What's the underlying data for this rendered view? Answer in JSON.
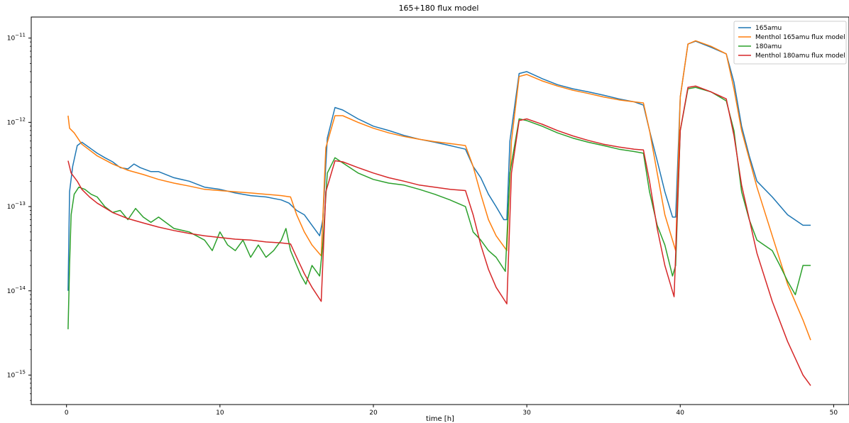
{
  "chart_data": {
    "type": "line",
    "title": "165+180 flux model",
    "xlabel": "time [h]",
    "ylabel": "",
    "xlim": [
      -2.3,
      51
    ],
    "ylim_log10": [
      -15.35,
      -10.75
    ],
    "yscale": "log",
    "grid": false,
    "legend_position": "top-right",
    "x_ticks": [
      0,
      10,
      20,
      30,
      40,
      50
    ],
    "y_ticks": [
      {
        "exp": -11,
        "label": "10−11"
      },
      {
        "exp": -12,
        "label": "10−12"
      },
      {
        "exp": -13,
        "label": "10−13"
      },
      {
        "exp": -14,
        "label": "10−14"
      },
      {
        "exp": -15,
        "label": "10−15"
      }
    ],
    "series": [
      {
        "name": "165amu",
        "color": "#1f77b4",
        "points": [
          [
            0.1,
            1e-14
          ],
          [
            0.2,
            1.5e-13
          ],
          [
            0.4,
            3e-13
          ],
          [
            0.7,
            5.3e-13
          ],
          [
            1.0,
            5.8e-13
          ],
          [
            1.5,
            5e-13
          ],
          [
            2.0,
            4.3e-13
          ],
          [
            2.5,
            3.8e-13
          ],
          [
            3.0,
            3.4e-13
          ],
          [
            3.5,
            2.9e-13
          ],
          [
            4.0,
            2.8e-13
          ],
          [
            4.4,
            3.2e-13
          ],
          [
            4.8,
            2.9e-13
          ],
          [
            5.5,
            2.6e-13
          ],
          [
            6.0,
            2.6e-13
          ],
          [
            7.0,
            2.2e-13
          ],
          [
            8.0,
            2e-13
          ],
          [
            9.0,
            1.7e-13
          ],
          [
            10.0,
            1.6e-13
          ],
          [
            11.0,
            1.45e-13
          ],
          [
            12.0,
            1.35e-13
          ],
          [
            13.0,
            1.3e-13
          ],
          [
            14.0,
            1.2e-13
          ],
          [
            14.5,
            1.1e-13
          ],
          [
            15.0,
            9e-14
          ],
          [
            15.5,
            8e-14
          ],
          [
            16.0,
            6e-14
          ],
          [
            16.5,
            4.5e-14
          ],
          [
            16.7,
            7e-14
          ],
          [
            17.0,
            6.5e-13
          ],
          [
            17.5,
            1.5e-12
          ],
          [
            18.0,
            1.4e-12
          ],
          [
            19.0,
            1.1e-12
          ],
          [
            20.0,
            9e-13
          ],
          [
            21.0,
            8e-13
          ],
          [
            22.0,
            7e-13
          ],
          [
            23.0,
            6.3e-13
          ],
          [
            24.0,
            5.8e-13
          ],
          [
            25.0,
            5.3e-13
          ],
          [
            26.0,
            4.8e-13
          ],
          [
            26.5,
            3e-13
          ],
          [
            27.0,
            2.2e-13
          ],
          [
            27.5,
            1.4e-13
          ],
          [
            28.0,
            1e-13
          ],
          [
            28.5,
            7e-14
          ],
          [
            28.7,
            7e-14
          ],
          [
            28.9,
            6e-13
          ],
          [
            29.5,
            3.8e-12
          ],
          [
            30.0,
            4e-12
          ],
          [
            31.0,
            3.3e-12
          ],
          [
            32.0,
            2.8e-12
          ],
          [
            33.0,
            2.5e-12
          ],
          [
            34.0,
            2.3e-12
          ],
          [
            35.0,
            2.1e-12
          ],
          [
            36.0,
            1.9e-12
          ],
          [
            37.0,
            1.75e-12
          ],
          [
            37.6,
            1.6e-12
          ],
          [
            38.0,
            8e-13
          ],
          [
            38.5,
            3.5e-13
          ],
          [
            39.0,
            1.5e-13
          ],
          [
            39.5,
            7.5e-14
          ],
          [
            39.7,
            7.5e-14
          ],
          [
            40.0,
            2e-12
          ],
          [
            40.5,
            8.5e-12
          ],
          [
            41.0,
            9.2e-12
          ],
          [
            42.0,
            7.8e-12
          ],
          [
            43.0,
            6.5e-12
          ],
          [
            43.5,
            3e-12
          ],
          [
            44.0,
            9e-13
          ],
          [
            44.5,
            4e-13
          ],
          [
            45.0,
            2e-13
          ],
          [
            46.0,
            1.3e-13
          ],
          [
            47.0,
            8e-14
          ],
          [
            48.0,
            6e-14
          ],
          [
            48.5,
            6e-14
          ]
        ]
      },
      {
        "name": "Menthol 165amu flux model",
        "color": "#ff7f0e",
        "points": [
          [
            0.1,
            1.2e-12
          ],
          [
            0.2,
            8.5e-13
          ],
          [
            0.5,
            7.5e-13
          ],
          [
            1.0,
            5.5e-13
          ],
          [
            2.0,
            4e-13
          ],
          [
            3.0,
            3.2e-13
          ],
          [
            4.0,
            2.7e-13
          ],
          [
            5.0,
            2.4e-13
          ],
          [
            6.0,
            2.1e-13
          ],
          [
            7.0,
            1.9e-13
          ],
          [
            8.0,
            1.75e-13
          ],
          [
            9.0,
            1.6e-13
          ],
          [
            10.0,
            1.55e-13
          ],
          [
            11.0,
            1.5e-13
          ],
          [
            12.0,
            1.45e-13
          ],
          [
            13.0,
            1.4e-13
          ],
          [
            14.0,
            1.35e-13
          ],
          [
            14.6,
            1.3e-13
          ],
          [
            15.0,
            8e-14
          ],
          [
            15.5,
            5e-14
          ],
          [
            16.0,
            3.5e-14
          ],
          [
            16.6,
            2.6e-14
          ],
          [
            16.9,
            5e-13
          ],
          [
            17.5,
            1.2e-12
          ],
          [
            18.0,
            1.2e-12
          ],
          [
            19.0,
            1e-12
          ],
          [
            20.0,
            8.5e-13
          ],
          [
            21.0,
            7.5e-13
          ],
          [
            22.0,
            6.8e-13
          ],
          [
            23.0,
            6.3e-13
          ],
          [
            24.0,
            5.9e-13
          ],
          [
            25.0,
            5.6e-13
          ],
          [
            26.0,
            5.3e-13
          ],
          [
            26.5,
            3e-13
          ],
          [
            27.0,
            1.4e-13
          ],
          [
            27.5,
            7e-14
          ],
          [
            28.0,
            4.5e-14
          ],
          [
            28.7,
            3e-14
          ],
          [
            29.0,
            6e-13
          ],
          [
            29.5,
            3.5e-12
          ],
          [
            30.0,
            3.7e-12
          ],
          [
            31.0,
            3.1e-12
          ],
          [
            32.0,
            2.7e-12
          ],
          [
            33.0,
            2.4e-12
          ],
          [
            34.0,
            2.2e-12
          ],
          [
            35.0,
            2e-12
          ],
          [
            36.0,
            1.85e-12
          ],
          [
            37.0,
            1.75e-12
          ],
          [
            37.6,
            1.7e-12
          ],
          [
            38.0,
            8e-13
          ],
          [
            38.5,
            2.5e-13
          ],
          [
            39.0,
            8e-14
          ],
          [
            39.7,
            3e-14
          ],
          [
            40.0,
            2e-12
          ],
          [
            40.5,
            8.5e-12
          ],
          [
            41.0,
            9.3e-12
          ],
          [
            42.0,
            8e-12
          ],
          [
            43.0,
            6.5e-12
          ],
          [
            43.5,
            2.5e-12
          ],
          [
            44.0,
            8e-13
          ],
          [
            45.0,
            1.7e-13
          ],
          [
            46.0,
            4.5e-14
          ],
          [
            47.0,
            1.2e-14
          ],
          [
            48.0,
            4.5e-15
          ],
          [
            48.5,
            2.6e-15
          ]
        ]
      },
      {
        "name": "180amu",
        "color": "#2ca02c",
        "points": [
          [
            0.1,
            3.5e-15
          ],
          [
            0.2,
            2e-14
          ],
          [
            0.3,
            8e-14
          ],
          [
            0.5,
            1.4e-13
          ],
          [
            0.8,
            1.7e-13
          ],
          [
            1.2,
            1.6e-13
          ],
          [
            1.6,
            1.4e-13
          ],
          [
            2.0,
            1.3e-13
          ],
          [
            2.5,
            1e-13
          ],
          [
            3.0,
            8.5e-14
          ],
          [
            3.5,
            9e-14
          ],
          [
            4.0,
            7e-14
          ],
          [
            4.5,
            9.5e-14
          ],
          [
            5.0,
            7.5e-14
          ],
          [
            5.5,
            6.5e-14
          ],
          [
            6.0,
            7.5e-14
          ],
          [
            7.0,
            5.5e-14
          ],
          [
            8.0,
            5e-14
          ],
          [
            9.0,
            4e-14
          ],
          [
            9.5,
            3e-14
          ],
          [
            10.0,
            5e-14
          ],
          [
            10.5,
            3.5e-14
          ],
          [
            11.0,
            3e-14
          ],
          [
            11.5,
            4e-14
          ],
          [
            12.0,
            2.5e-14
          ],
          [
            12.5,
            3.5e-14
          ],
          [
            13.0,
            2.5e-14
          ],
          [
            13.5,
            3e-14
          ],
          [
            14.0,
            4e-14
          ],
          [
            14.3,
            5.5e-14
          ],
          [
            14.6,
            3e-14
          ],
          [
            15.0,
            2e-14
          ],
          [
            15.3,
            1.5e-14
          ],
          [
            15.6,
            1.2e-14
          ],
          [
            16.0,
            2e-14
          ],
          [
            16.5,
            1.5e-14
          ],
          [
            16.7,
            3.5e-14
          ],
          [
            17.0,
            2.5e-13
          ],
          [
            17.5,
            3.8e-13
          ],
          [
            18.0,
            3.3e-13
          ],
          [
            19.0,
            2.5e-13
          ],
          [
            20.0,
            2.1e-13
          ],
          [
            21.0,
            1.9e-13
          ],
          [
            22.0,
            1.8e-13
          ],
          [
            23.0,
            1.6e-13
          ],
          [
            24.0,
            1.4e-13
          ],
          [
            25.0,
            1.2e-13
          ],
          [
            26.0,
            1e-13
          ],
          [
            26.5,
            5e-14
          ],
          [
            27.0,
            4e-14
          ],
          [
            27.5,
            3e-14
          ],
          [
            28.0,
            2.5e-14
          ],
          [
            28.6,
            1.7e-14
          ],
          [
            28.9,
            2.5e-13
          ],
          [
            29.5,
            1.1e-12
          ],
          [
            30.0,
            1.05e-12
          ],
          [
            31.0,
            9e-13
          ],
          [
            32.0,
            7.5e-13
          ],
          [
            33.0,
            6.5e-13
          ],
          [
            34.0,
            5.8e-13
          ],
          [
            35.0,
            5.3e-13
          ],
          [
            36.0,
            4.8e-13
          ],
          [
            37.0,
            4.5e-13
          ],
          [
            37.6,
            4.3e-13
          ],
          [
            38.0,
            1.5e-13
          ],
          [
            38.5,
            6e-14
          ],
          [
            39.0,
            3.5e-14
          ],
          [
            39.5,
            1.5e-14
          ],
          [
            39.7,
            2e-14
          ],
          [
            40.0,
            8e-13
          ],
          [
            40.5,
            2.5e-12
          ],
          [
            41.0,
            2.6e-12
          ],
          [
            42.0,
            2.3e-12
          ],
          [
            43.0,
            1.8e-12
          ],
          [
            43.5,
            8e-13
          ],
          [
            44.0,
            1.5e-13
          ],
          [
            44.5,
            7e-14
          ],
          [
            45.0,
            4e-14
          ],
          [
            46.0,
            3e-14
          ],
          [
            46.5,
            2e-14
          ],
          [
            47.0,
            1.3e-14
          ],
          [
            47.5,
            9e-15
          ],
          [
            48.0,
            2e-14
          ],
          [
            48.5,
            2e-14
          ]
        ]
      },
      {
        "name": "Menthol 180amu flux model",
        "color": "#d62728",
        "points": [
          [
            0.1,
            3.5e-13
          ],
          [
            0.3,
            2.5e-13
          ],
          [
            0.7,
            2e-13
          ],
          [
            1.0,
            1.6e-13
          ],
          [
            1.5,
            1.3e-13
          ],
          [
            2.0,
            1.1e-13
          ],
          [
            3.0,
            8.5e-14
          ],
          [
            4.0,
            7.2e-14
          ],
          [
            5.0,
            6.4e-14
          ],
          [
            6.0,
            5.7e-14
          ],
          [
            7.0,
            5.2e-14
          ],
          [
            8.0,
            4.8e-14
          ],
          [
            9.0,
            4.5e-14
          ],
          [
            10.0,
            4.3e-14
          ],
          [
            11.0,
            4.1e-14
          ],
          [
            12.0,
            4e-14
          ],
          [
            13.0,
            3.8e-14
          ],
          [
            14.0,
            3.7e-14
          ],
          [
            14.6,
            3.6e-14
          ],
          [
            15.0,
            2.5e-14
          ],
          [
            15.5,
            1.6e-14
          ],
          [
            16.0,
            1.1e-14
          ],
          [
            16.6,
            7.5e-15
          ],
          [
            16.9,
            1.5e-13
          ],
          [
            17.5,
            3.5e-13
          ],
          [
            18.0,
            3.4e-13
          ],
          [
            19.0,
            2.9e-13
          ],
          [
            20.0,
            2.5e-13
          ],
          [
            21.0,
            2.2e-13
          ],
          [
            22.0,
            2e-13
          ],
          [
            23.0,
            1.8e-13
          ],
          [
            24.0,
            1.7e-13
          ],
          [
            25.0,
            1.6e-13
          ],
          [
            26.0,
            1.55e-13
          ],
          [
            26.5,
            8e-14
          ],
          [
            27.0,
            3.5e-14
          ],
          [
            27.5,
            1.8e-14
          ],
          [
            28.0,
            1.1e-14
          ],
          [
            28.7,
            7e-15
          ],
          [
            29.0,
            2.5e-13
          ],
          [
            29.5,
            1.05e-12
          ],
          [
            30.0,
            1.1e-12
          ],
          [
            31.0,
            9.5e-13
          ],
          [
            32.0,
            8e-13
          ],
          [
            33.0,
            6.9e-13
          ],
          [
            34.0,
            6.1e-13
          ],
          [
            35.0,
            5.5e-13
          ],
          [
            36.0,
            5.1e-13
          ],
          [
            37.0,
            4.8e-13
          ],
          [
            37.6,
            4.7e-13
          ],
          [
            38.0,
            2e-13
          ],
          [
            38.5,
            5.5e-14
          ],
          [
            39.0,
            2e-14
          ],
          [
            39.6,
            8.5e-15
          ],
          [
            40.0,
            8e-13
          ],
          [
            40.5,
            2.6e-12
          ],
          [
            41.0,
            2.7e-12
          ],
          [
            42.0,
            2.3e-12
          ],
          [
            43.0,
            1.9e-12
          ],
          [
            43.5,
            7e-13
          ],
          [
            44.0,
            1.8e-13
          ],
          [
            45.0,
            2.8e-14
          ],
          [
            46.0,
            7.5e-15
          ],
          [
            47.0,
            2.5e-15
          ],
          [
            48.0,
            1e-15
          ],
          [
            48.5,
            7.5e-16
          ]
        ]
      }
    ]
  }
}
